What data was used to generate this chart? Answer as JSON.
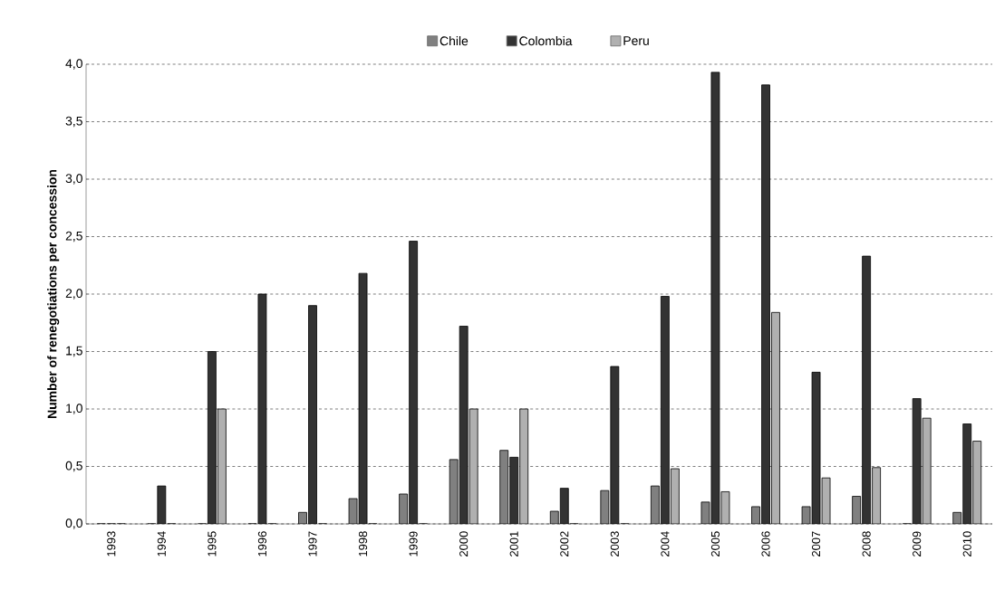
{
  "chart_data": {
    "type": "bar",
    "ylabel": "Number of renegotiations per concession",
    "categories": [
      "1993",
      "1994",
      "1995",
      "1996",
      "1997",
      "1998",
      "1999",
      "2000",
      "2001",
      "2002",
      "2003",
      "2004",
      "2005",
      "2006",
      "2007",
      "2008",
      "2009",
      "2010"
    ],
    "series": [
      {
        "name": "Chile",
        "color": "#808080",
        "values": [
          0,
          0,
          0,
          0,
          0.1,
          0.22,
          0.26,
          0.56,
          0.64,
          0.11,
          0.29,
          0.33,
          0.19,
          0.15,
          0.15,
          0.24,
          0,
          0.1
        ]
      },
      {
        "name": "Colombia",
        "color": "#333333",
        "values": [
          0,
          0.33,
          1.5,
          2.0,
          1.9,
          2.18,
          2.46,
          1.72,
          0.58,
          0.31,
          1.37,
          1.98,
          3.93,
          3.82,
          1.32,
          2.33,
          1.09,
          0.87
        ]
      },
      {
        "name": "Peru",
        "color": "#b0b0b0",
        "values": [
          0,
          0,
          1.0,
          0,
          0,
          0,
          0,
          1.0,
          1.0,
          0,
          0,
          0.48,
          0.28,
          1.84,
          0.4,
          0.49,
          0.92,
          0.72
        ]
      }
    ],
    "ylim": [
      0,
      4
    ],
    "yticks": [
      {
        "value": 0,
        "label": "0,0"
      },
      {
        "value": 0.5,
        "label": "0,5"
      },
      {
        "value": 1,
        "label": "1,0"
      },
      {
        "value": 1.5,
        "label": "1,5"
      },
      {
        "value": 2,
        "label": "2,0"
      },
      {
        "value": 2.5,
        "label": "2,5"
      },
      {
        "value": 3,
        "label": "3,0"
      },
      {
        "value": 3.5,
        "label": "3,5"
      },
      {
        "value": 4,
        "label": "4,0"
      }
    ],
    "grid": "y",
    "legend": "top"
  }
}
